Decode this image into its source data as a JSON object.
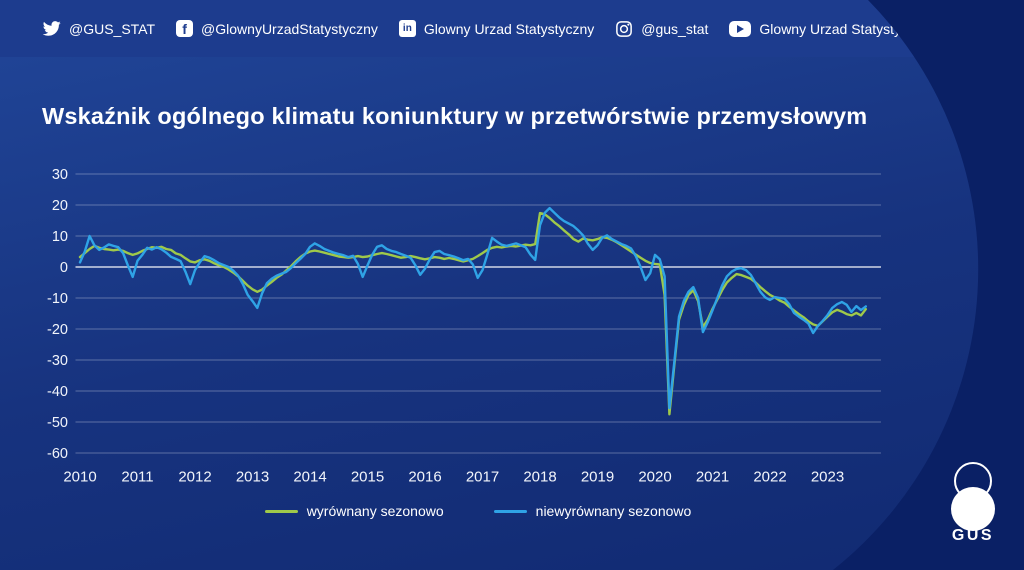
{
  "topbar": {
    "items": [
      {
        "icon": "twitter-icon",
        "label": "@GUS_STAT"
      },
      {
        "icon": "facebook-icon",
        "label": "@GlownyUrzadStatystyczny",
        "glyph": "f"
      },
      {
        "icon": "linkedin-icon",
        "label": "Glowny Urzad Statystyczny",
        "glyph": "in"
      },
      {
        "icon": "instagram-icon",
        "label": "@gus_stat"
      },
      {
        "icon": "youtube-icon",
        "label": "Glowny Urzad Statystyczny GUS"
      }
    ]
  },
  "title": "Wskaźnik ogólnego klimatu koniunktury w przetwórstwie przemysłowym",
  "logo": {
    "text": "GUS"
  },
  "colors": {
    "background_light": "#1b3a8e",
    "background_dark": "#0a2065",
    "topbar": "#1d3c8e",
    "gridline": "#ffffff",
    "series_green": "#9fc94a",
    "series_blue": "#2fa3e6"
  },
  "chart_data": {
    "type": "line",
    "title": "Wskaźnik ogólnego klimatu koniunktury w przetwórstwie przemysłowym",
    "x_unit": "month",
    "x_start": "2010-01",
    "x_end": "2023-09",
    "x_tick_labels": [
      "2010",
      "2011",
      "2012",
      "2013",
      "2014",
      "2015",
      "2016",
      "2017",
      "2018",
      "2019",
      "2020",
      "2021",
      "2022",
      "2023"
    ],
    "y_ticks": [
      30,
      20,
      10,
      0,
      -10,
      -20,
      -30,
      -40,
      -50,
      -60
    ],
    "ylim": [
      -60,
      30
    ],
    "grid": true,
    "legend_position": "bottom",
    "series": [
      {
        "name": "wyrównany sezonowo",
        "color": "#9fc94a",
        "values": [
          3.2,
          4.5,
          5.8,
          6.8,
          6.2,
          5.8,
          5.6,
          5.4,
          5.6,
          5.2,
          4.5,
          3.9,
          4.4,
          5.2,
          5.8,
          6.4,
          6.2,
          6.5,
          5.8,
          5.5,
          4.4,
          3.9,
          2.8,
          1.8,
          1.5,
          2.2,
          2.5,
          2.0,
          1.2,
          0.5,
          0.0,
          -0.8,
          -1.8,
          -3.0,
          -4.5,
          -6.0,
          -7.2,
          -8.0,
          -7.3,
          -6.0,
          -4.8,
          -3.5,
          -2.5,
          -1.2,
          0.2,
          1.8,
          3.2,
          4.3,
          5.0,
          5.3,
          5.0,
          4.6,
          4.2,
          3.8,
          3.4,
          3.2,
          3.0,
          3.2,
          3.5,
          3.2,
          3.4,
          3.8,
          4.2,
          4.5,
          4.2,
          3.8,
          3.4,
          3.0,
          3.2,
          3.5,
          3.2,
          2.8,
          2.5,
          2.8,
          3.2,
          3.0,
          2.6,
          2.9,
          2.6,
          2.2,
          1.8,
          2.2,
          2.6,
          3.5,
          4.5,
          5.5,
          6.2,
          6.5,
          6.3,
          6.6,
          6.8,
          6.6,
          6.9,
          7.2,
          7.0,
          7.4,
          17.4,
          17.0,
          15.8,
          14.4,
          13.2,
          11.8,
          10.5,
          9.0,
          8.2,
          9.2,
          8.8,
          8.6,
          9.0,
          9.6,
          9.4,
          8.8,
          8.0,
          7.0,
          6.0,
          5.0,
          4.0,
          3.0,
          2.0,
          1.3,
          1.0,
          0.8,
          -9.0,
          -47.5,
          -32.0,
          -17.0,
          -12.3,
          -9.0,
          -7.5,
          -11.0,
          -19.4,
          -17.0,
          -13.5,
          -10.5,
          -7.5,
          -5.0,
          -3.5,
          -2.3,
          -2.6,
          -3.2,
          -3.8,
          -5.0,
          -6.5,
          -7.8,
          -9.0,
          -9.8,
          -10.8,
          -11.5,
          -12.8,
          -14.0,
          -15.2,
          -16.2,
          -17.5,
          -18.5,
          -19.0,
          -17.5,
          -16.0,
          -14.6,
          -13.8,
          -14.4,
          -15.2,
          -15.6,
          -14.8,
          -15.6,
          -13.6
        ]
      },
      {
        "name": "niewyrównany sezonowo",
        "color": "#2fa3e6",
        "values": [
          1.5,
          5.0,
          10.0,
          7.0,
          5.5,
          6.3,
          7.3,
          6.8,
          6.4,
          4.5,
          0.5,
          -3.2,
          2.0,
          3.9,
          6.2,
          5.6,
          6.4,
          5.7,
          4.6,
          3.3,
          2.6,
          1.9,
          -1.5,
          -5.5,
          -1.0,
          1.5,
          3.5,
          3.0,
          2.2,
          1.2,
          0.6,
          0.0,
          -1.2,
          -2.8,
          -5.5,
          -9.0,
          -11.0,
          -13.2,
          -8.5,
          -5.2,
          -3.8,
          -2.8,
          -2.2,
          -1.6,
          -0.4,
          1.2,
          2.6,
          4.2,
          6.5,
          7.6,
          6.8,
          5.8,
          5.2,
          4.6,
          4.2,
          3.8,
          3.2,
          3.6,
          1.0,
          -3.2,
          0.5,
          4.0,
          6.5,
          7.0,
          5.8,
          5.2,
          4.8,
          4.2,
          3.6,
          3.0,
          0.5,
          -2.5,
          -0.5,
          2.5,
          4.8,
          5.2,
          4.2,
          3.8,
          3.4,
          2.8,
          2.2,
          2.6,
          0.8,
          -3.5,
          -1.0,
          4.0,
          9.4,
          8.2,
          7.2,
          6.8,
          7.2,
          7.6,
          7.0,
          6.4,
          4.0,
          2.3,
          13.5,
          17.5,
          19.0,
          17.5,
          16.0,
          14.8,
          14.0,
          13.2,
          11.8,
          10.2,
          7.5,
          5.5,
          7.0,
          9.5,
          10.2,
          9.0,
          8.2,
          7.4,
          6.8,
          6.0,
          3.5,
          0.0,
          -4.2,
          -2.0,
          3.9,
          2.5,
          -3.0,
          -45.5,
          -31.0,
          -16.0,
          -11.0,
          -8.0,
          -6.5,
          -10.0,
          -21.0,
          -17.8,
          -14.0,
          -10.0,
          -6.0,
          -3.0,
          -1.5,
          -0.6,
          -0.4,
          -1.0,
          -2.5,
          -5.2,
          -8.0,
          -9.8,
          -10.6,
          -9.7,
          -10.0,
          -10.2,
          -12.0,
          -14.8,
          -16.0,
          -17.0,
          -18.2,
          -21.3,
          -19.0,
          -17.4,
          -15.5,
          -13.2,
          -12.0,
          -11.3,
          -12.2,
          -14.5,
          -12.6,
          -13.9,
          -12.7
        ]
      }
    ]
  }
}
